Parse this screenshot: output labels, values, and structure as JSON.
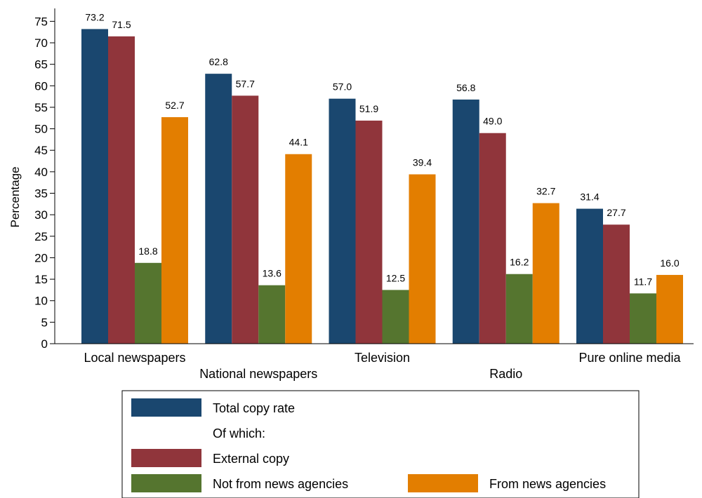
{
  "chart_data": {
    "type": "bar",
    "title": "",
    "xlabel": "",
    "ylabel": "Percentage",
    "ylim": [
      0,
      78
    ],
    "yticks": [
      0,
      5,
      10,
      15,
      20,
      25,
      30,
      35,
      40,
      45,
      50,
      55,
      60,
      65,
      70,
      75
    ],
    "grid": false,
    "legend_position": "bottom",
    "categories": [
      "Local newspapers",
      "National newspapers",
      "Television",
      "Radio",
      "Pure online media"
    ],
    "series": [
      {
        "name": "Total copy rate",
        "color": "#1a476f",
        "values": [
          73.2,
          62.8,
          57.0,
          56.8,
          31.4
        ],
        "labels": [
          "73.2",
          "62.8",
          "57.0",
          "56.8",
          "31.4"
        ]
      },
      {
        "name": "External copy",
        "color": "#90353b",
        "values": [
          71.5,
          57.7,
          51.9,
          49.0,
          27.7
        ],
        "labels": [
          "71.5",
          "57.7",
          "51.9",
          "49.0",
          "27.7"
        ]
      },
      {
        "name": "Not from news agencies",
        "color": "#55752f",
        "values": [
          18.8,
          13.6,
          12.5,
          16.2,
          11.7
        ],
        "labels": [
          "18.8",
          "13.6",
          "12.5",
          "16.2",
          "11.7"
        ]
      },
      {
        "name": "From news agencies",
        "color": "#e37e00",
        "values": [
          52.7,
          44.1,
          39.4,
          32.7,
          16.0
        ],
        "labels": [
          "52.7",
          "44.1",
          "39.4",
          "32.7",
          "16.0"
        ]
      }
    ],
    "legend_subheading": "Of which:"
  }
}
